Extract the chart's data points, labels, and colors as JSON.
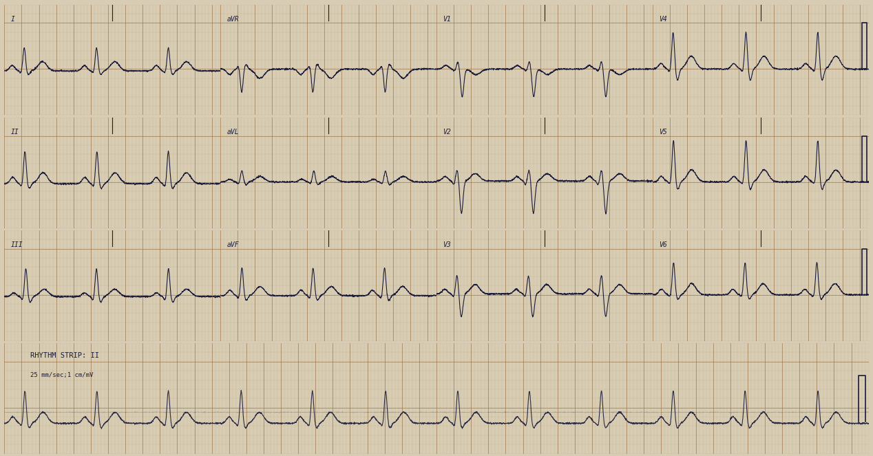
{
  "bg_color": "#d8cdb4",
  "grid_minor_color": "#b8a070",
  "grid_major_color": "#9a7040",
  "line_color": "#1a1a3a",
  "line_width": 0.8,
  "rhythm_label": "RHYTHM STRIP: II",
  "rhythm_sublabel": "25 mm/sec;1 cm/mV",
  "fig_width": 12.68,
  "fig_height": 6.63,
  "leads_layout": [
    [
      "I",
      "aVR",
      "V1",
      "V4"
    ],
    [
      "II",
      "aVL",
      "V2",
      "V5"
    ],
    [
      "III",
      "aVF",
      "V3",
      "V6"
    ]
  ]
}
